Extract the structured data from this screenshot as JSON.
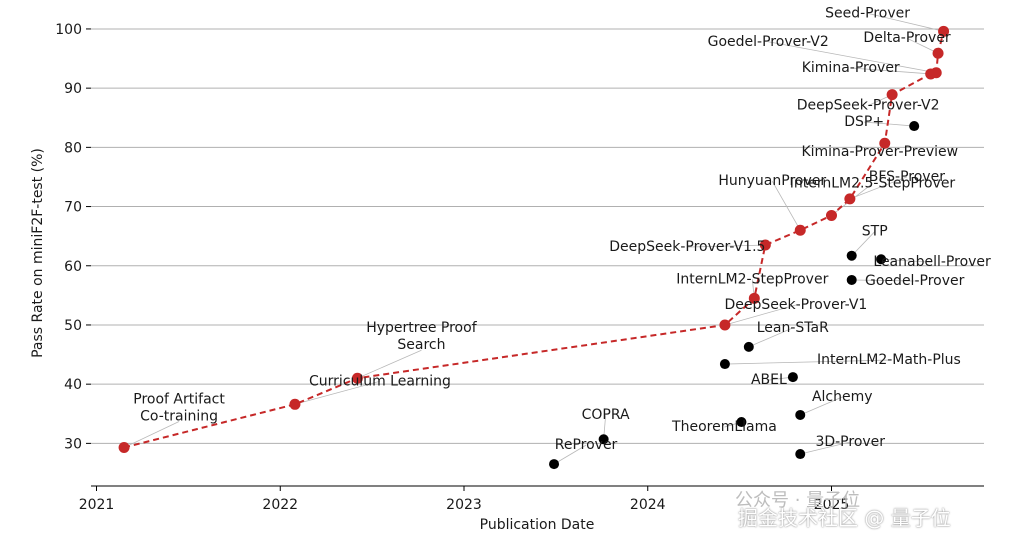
{
  "chart_data": {
    "type": "scatter",
    "title": "",
    "xlabel": "Publication Date",
    "ylabel": "Pass Rate on miniF2F-test (%)",
    "xlim": [
      2020.97,
      2025.83
    ],
    "ylim": [
      22.8,
      103.2
    ],
    "xticks": [
      2021,
      2022,
      2023,
      2024,
      2025
    ],
    "yticks": [
      30,
      40,
      50,
      60,
      70,
      80,
      90,
      100
    ],
    "grid": "horizontal",
    "colors": {
      "frontier": "#c62828",
      "other": "#000000",
      "grid": "#b0b0b0",
      "connector": "#b8b8b8"
    },
    "frontier": [
      {
        "name": "Proof Artifact\nCo-training",
        "x": 2021.15,
        "y": 29.3
      },
      {
        "name": "Curriculum Learning",
        "x": 2022.08,
        "y": 36.6
      },
      {
        "name": "Hypertree Proof\nSearch",
        "x": 2022.42,
        "y": 41.0
      },
      {
        "name": "DeepSeek-Prover-V1",
        "x": 2024.42,
        "y": 50.0
      },
      {
        "name": "InternLM2-StepProver",
        "x": 2024.58,
        "y": 54.5
      },
      {
        "name": "DeepSeek-Prover-V1.5",
        "x": 2024.64,
        "y": 63.5
      },
      {
        "name": "HunyuanProver",
        "x": 2024.83,
        "y": 66.0
      },
      {
        "name": "InternLM2.5-StepProver",
        "x": 2025.0,
        "y": 68.5
      },
      {
        "name": "BFS-Prover",
        "x": 2025.1,
        "y": 71.3
      },
      {
        "name": "Kimina-Prover-Preview",
        "x": 2025.29,
        "y": 80.7
      },
      {
        "name": "DeepSeek-Prover-V2",
        "x": 2025.33,
        "y": 88.9
      },
      {
        "name": "Kimina-Prover",
        "x": 2025.54,
        "y": 92.4
      },
      {
        "name": "Goedel-Prover-V2",
        "x": 2025.57,
        "y": 92.6
      },
      {
        "name": "Delta-Prover",
        "x": 2025.58,
        "y": 95.9
      },
      {
        "name": "Seed-Prover",
        "x": 2025.61,
        "y": 99.6
      }
    ],
    "others": [
      {
        "name": "ReProver",
        "x": 2023.49,
        "y": 26.5
      },
      {
        "name": "COPRA",
        "x": 2023.76,
        "y": 30.7
      },
      {
        "name": "TheoremLlama",
        "x": 2024.51,
        "y": 33.6
      },
      {
        "name": "3D-Prover",
        "x": 2024.83,
        "y": 28.2
      },
      {
        "name": "Alchemy",
        "x": 2024.83,
        "y": 34.8
      },
      {
        "name": "ABEL",
        "x": 2024.79,
        "y": 41.2
      },
      {
        "name": "InternLM2-Math-Plus",
        "x": 2024.42,
        "y": 43.4
      },
      {
        "name": "Lean-STaR",
        "x": 2024.55,
        "y": 46.3
      },
      {
        "name": "STP",
        "x": 2025.11,
        "y": 61.7
      },
      {
        "name": "Leanabell-Prover",
        "x": 2025.27,
        "y": 61.1
      },
      {
        "name": "Goedel-Prover",
        "x": 2025.11,
        "y": 57.6
      },
      {
        "name": "DSP+",
        "x": 2025.45,
        "y": 83.6
      }
    ]
  },
  "watermark": {
    "line1": "公众号 · 量子位",
    "line2": "掘金技术社区 @ 量子位"
  }
}
